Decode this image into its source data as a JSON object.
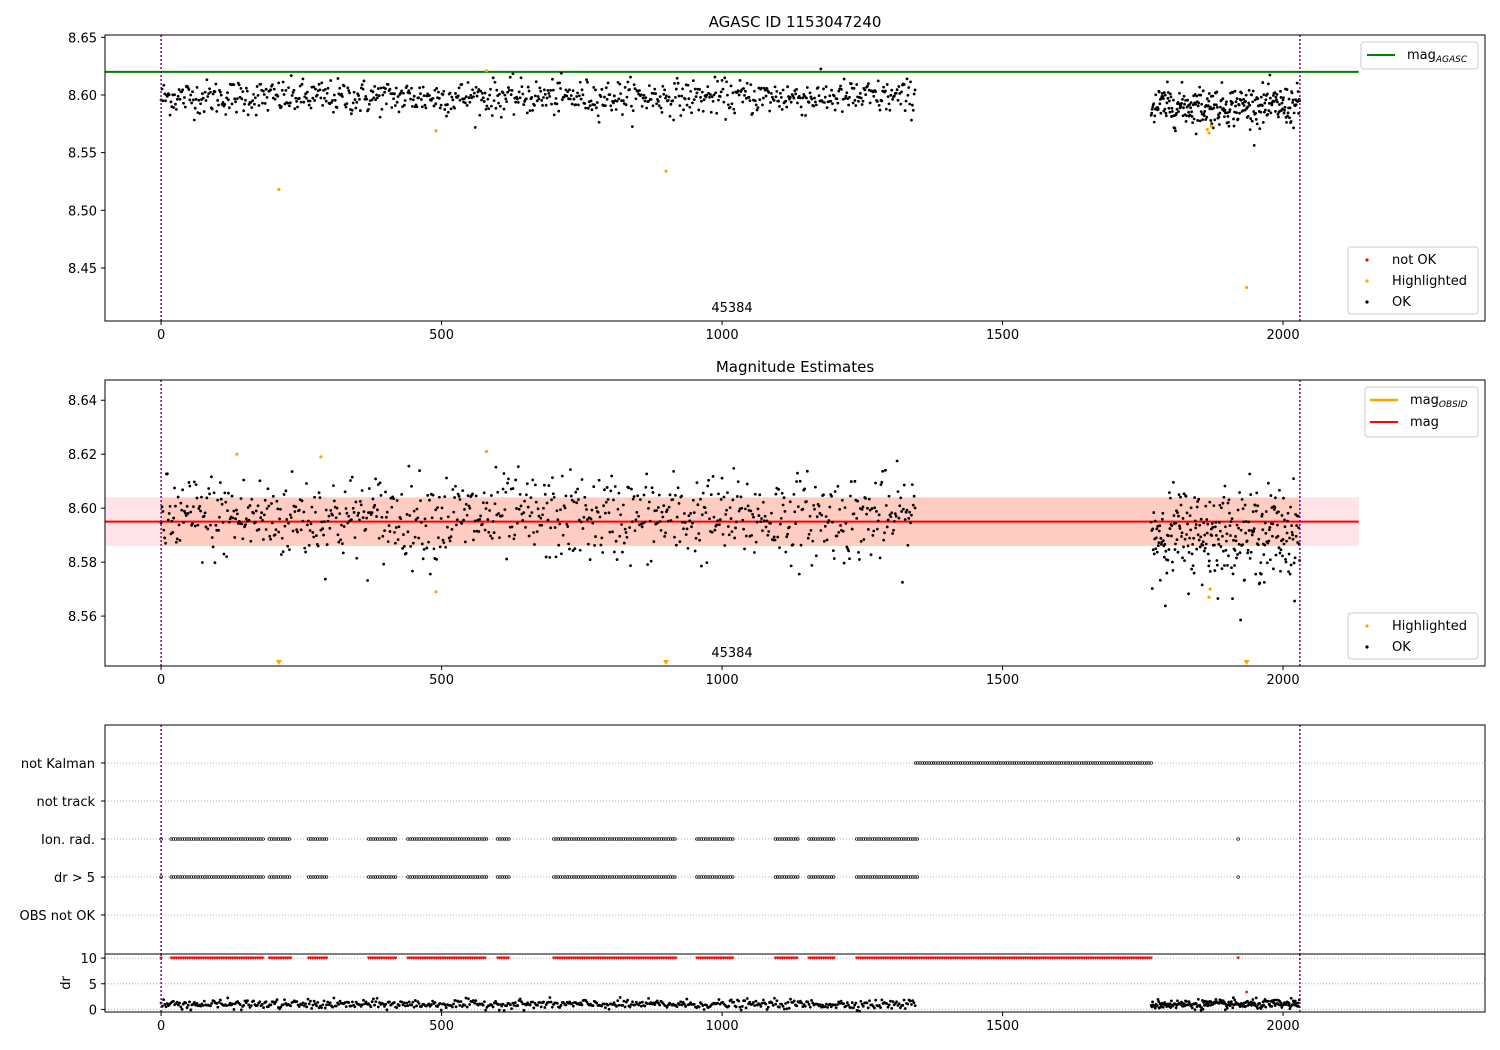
{
  "colors": {
    "ok": "#000000",
    "highlighted": "#ffa500",
    "not_ok": "#ff0000",
    "mag_agasc": "#008000",
    "mag_obsid": "#ffa500",
    "mag": "#ff0000",
    "band_inner": "#ffa07a",
    "band_outer": "#ffc0cb",
    "obs_boundary": "#800080"
  },
  "chart_data": [
    {
      "type": "scatter",
      "title": "AGASC ID 1153047240",
      "xlabel": "",
      "ylabel": "",
      "xlim": [
        -100,
        2360
      ],
      "ylim": [
        8.404,
        8.652
      ],
      "yticks": [
        8.45,
        8.5,
        8.55,
        8.6,
        8.65
      ],
      "ytick_labels": [
        "8.45",
        "8.50",
        "8.55",
        "8.60",
        "8.65"
      ],
      "xticks": [
        0,
        500,
        1000,
        1500,
        2000
      ],
      "xtick_labels": [
        "0",
        "500",
        "1000",
        "1500",
        "2000"
      ],
      "grid": false,
      "obsid_boundaries": [
        0,
        2030
      ],
      "obsid_label": "45384",
      "obsid_label_x": 1015,
      "lines": [
        {
          "name": "mag",
          "subscript": "AGASC",
          "y": 8.62,
          "x_range": [
            -100,
            2135
          ],
          "color": "#008000"
        }
      ],
      "legend_top": {
        "placement": "top-right",
        "entries": [
          {
            "name": "mag",
            "subscript": "AGASC",
            "kind": "line",
            "color": "#008000"
          }
        ]
      },
      "legend_bottom": {
        "placement": "bottom-right",
        "entries": [
          {
            "name": "not OK",
            "kind": "point",
            "color": "#ff0000"
          },
          {
            "name": "Highlighted",
            "kind": "point",
            "color": "#ffa500"
          },
          {
            "name": "OK",
            "kind": "point",
            "color": "#000000"
          }
        ]
      },
      "series": [
        {
          "name": "OK",
          "segments": [
            {
              "x_start": 0,
              "x_end": 1345,
              "step": 1.6,
              "mean": 8.598,
              "spread": 0.0075
            },
            {
              "x_start": 1765,
              "x_end": 2030,
              "step": 0.9,
              "mean": 8.5905,
              "spread": 0.0085
            }
          ]
        },
        {
          "name": "Highlighted",
          "points": [
            {
              "x": 210,
              "y": 8.518
            },
            {
              "x": 490,
              "y": 8.569
            },
            {
              "x": 580,
              "y": 8.621
            },
            {
              "x": 900,
              "y": 8.534
            },
            {
              "x": 1865,
              "y": 8.57
            },
            {
              "x": 1868,
              "y": 8.567
            },
            {
              "x": 1872,
              "y": 8.573
            },
            {
              "x": 1935,
              "y": 8.433
            }
          ]
        },
        {
          "name": "not OK",
          "points": []
        }
      ]
    },
    {
      "type": "scatter",
      "title": "Magnitude Estimates",
      "xlabel": "",
      "ylabel": "",
      "xlim": [
        -100,
        2360
      ],
      "ylim": [
        8.5415,
        8.6475
      ],
      "yticks": [
        8.56,
        8.58,
        8.6,
        8.62,
        8.64
      ],
      "ytick_labels": [
        "8.56",
        "8.58",
        "8.60",
        "8.62",
        "8.64"
      ],
      "xticks": [
        0,
        500,
        1000,
        1500,
        2000
      ],
      "xtick_labels": [
        "0",
        "500",
        "1000",
        "1500",
        "2000"
      ],
      "grid": false,
      "obsid_boundaries": [
        0,
        2030
      ],
      "obsid_label": "45384",
      "obsid_label_x": 1015,
      "mag": 8.595,
      "mag_band": [
        8.586,
        8.604
      ],
      "mag_band_outer": [
        8.586,
        8.604
      ],
      "mag_x_range": [
        -100,
        2135
      ],
      "legend_top": {
        "placement": "top-right",
        "entries": [
          {
            "name": "mag",
            "subscript": "OBSID",
            "kind": "line",
            "color": "#ffa500"
          },
          {
            "name": "mag",
            "kind": "line",
            "color": "#ff0000"
          }
        ]
      },
      "legend_bottom": {
        "placement": "bottom-right",
        "entries": [
          {
            "name": "Highlighted",
            "kind": "point",
            "color": "#ffa500"
          },
          {
            "name": "OK",
            "kind": "point",
            "color": "#000000"
          }
        ]
      },
      "series": [
        {
          "name": "OK",
          "segments": [
            {
              "x_start": 0,
              "x_end": 1345,
              "step": 1.6,
              "mean": 8.5965,
              "spread": 0.008
            },
            {
              "x_start": 1765,
              "x_end": 2030,
              "step": 0.9,
              "mean": 8.5905,
              "spread": 0.0085
            }
          ]
        },
        {
          "name": "Highlighted",
          "points": [
            {
              "x": 135,
              "y": 8.62
            },
            {
              "x": 285,
              "y": 8.619
            },
            {
              "x": 490,
              "y": 8.569
            },
            {
              "x": 580,
              "y": 8.621
            },
            {
              "x": 1868,
              "y": 8.567
            },
            {
              "x": 1870,
              "y": 8.57
            }
          ]
        },
        {
          "name": "Highlighted (below range)",
          "marker": "triangle-down",
          "points": [
            {
              "x": 210
            },
            {
              "x": 900
            },
            {
              "x": 1935
            }
          ]
        }
      ]
    },
    {
      "type": "flags",
      "xlim": [
        -100,
        2360
      ],
      "categories": [
        "not Kalman",
        "not track",
        "Ion. rad.",
        "dr > 5",
        "OBS not OK"
      ],
      "obsid_boundaries": [
        0,
        2030
      ],
      "flag_runs": {
        "not Kalman": [
          [
            1345,
            1765
          ]
        ],
        "not track": [],
        "Ion. rad.": [
          [
            0,
            2
          ],
          [
            18,
            183
          ],
          [
            193,
            232
          ],
          [
            263,
            297
          ],
          [
            370,
            420
          ],
          [
            440,
            580
          ],
          [
            600,
            622
          ],
          [
            700,
            918
          ],
          [
            955,
            1020
          ],
          [
            1095,
            1135
          ],
          [
            1155,
            1202
          ],
          [
            1240,
            1348
          ],
          [
            1920,
            1922
          ]
        ],
        "dr > 5": [
          [
            0,
            2
          ],
          [
            18,
            183
          ],
          [
            193,
            232
          ],
          [
            263,
            297
          ],
          [
            370,
            420
          ],
          [
            440,
            580
          ],
          [
            600,
            622
          ],
          [
            700,
            918
          ],
          [
            955,
            1020
          ],
          [
            1095,
            1135
          ],
          [
            1155,
            1202
          ],
          [
            1240,
            1348
          ],
          [
            1920,
            1922
          ]
        ],
        "OBS not OK": []
      },
      "flag_step": 4
    },
    {
      "type": "scatter",
      "xlabel": "",
      "ylabel": "dr",
      "xlim": [
        -100,
        2360
      ],
      "ylim": [
        -0.5,
        10.8
      ],
      "yticks": [
        0,
        5,
        10
      ],
      "ytick_labels": [
        "0",
        "5",
        "10"
      ],
      "xticks": [
        0,
        500,
        1000,
        1500,
        2000
      ],
      "xtick_labels": [
        "0",
        "500",
        "1000",
        "1500",
        "2000"
      ],
      "grid": true,
      "obsid_boundaries": [
        0,
        2030
      ],
      "series": [
        {
          "name": "dr",
          "segments": [
            {
              "x_start": 0,
              "x_end": 1345,
              "step": 2.2,
              "mean": 1.0,
              "spread": 0.45
            },
            {
              "x_start": 1765,
              "x_end": 2030,
              "step": 1.2,
              "mean": 1.0,
              "spread": 0.45
            }
          ]
        },
        {
          "name": "dr clipped",
          "clip_value": 10,
          "runs": [
            [
              0,
              2
            ],
            [
              18,
              183
            ],
            [
              193,
              232
            ],
            [
              263,
              297
            ],
            [
              370,
              420
            ],
            [
              440,
              580
            ],
            [
              600,
              622
            ],
            [
              700,
              918
            ],
            [
              955,
              1020
            ],
            [
              1095,
              1135
            ],
            [
              1155,
              1202
            ],
            [
              1240,
              1765
            ],
            [
              1920,
              1922
            ]
          ],
          "step": 3.2
        },
        {
          "name": "dr extra",
          "points": [
            {
              "x": 1935,
              "y": 3.4
            }
          ]
        }
      ]
    }
  ]
}
